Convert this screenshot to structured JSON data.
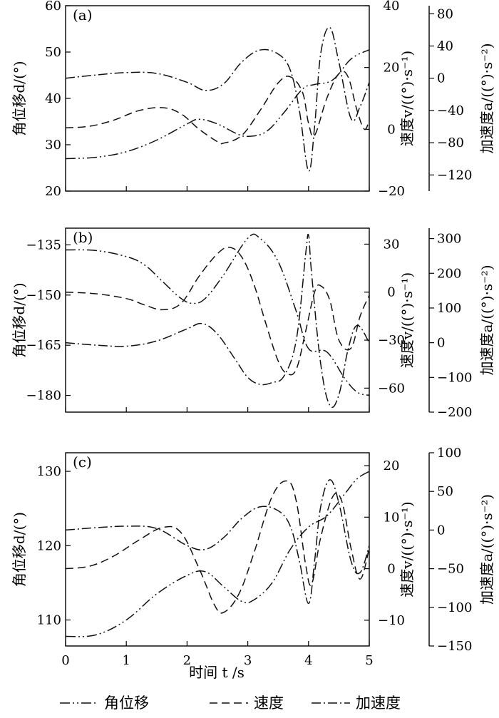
{
  "x_label": "时间 t /s",
  "legend": [
    {
      "label": "角位移",
      "dash": "dashdotdot"
    },
    {
      "label": "速度",
      "dash": "dashed"
    },
    {
      "label": "加速度",
      "dash": "dashdot"
    }
  ],
  "chart_data": [
    {
      "type": "line",
      "panel_label": "(a)",
      "xlim": [
        0,
        5
      ],
      "x_ticks": [
        0,
        1,
        2,
        3,
        4,
        5
      ],
      "axes": {
        "left": {
          "label": "角位移d/(°)",
          "lim": [
            20,
            60
          ],
          "ticks": [
            20,
            30,
            40,
            50,
            60
          ]
        },
        "right1": {
          "label": "速度v/((°)·s⁻¹)",
          "lim": [
            -20,
            40
          ],
          "ticks": [
            -20,
            0,
            20,
            40
          ]
        },
        "right2": {
          "label": "加速度a/((°)·s⁻²)",
          "lim": [
            -140,
            90
          ],
          "ticks": [
            -120,
            -80,
            -40,
            0,
            40,
            80
          ]
        }
      },
      "series": [
        {
          "name": "角位移",
          "axis": "left",
          "dash": "dashdotdot",
          "x": [
            0,
            0.5,
            1.0,
            1.5,
            2.0,
            2.2,
            2.5,
            2.8,
            3.0,
            3.3,
            3.6,
            3.9,
            4.1,
            4.4,
            4.7,
            5.0
          ],
          "y": [
            27,
            27.3,
            28.5,
            31,
            34.5,
            35.5,
            34.5,
            32.5,
            31.8,
            32.8,
            37,
            42,
            43,
            44,
            48.5,
            50.5
          ]
        },
        {
          "name": "速度",
          "axis": "right1",
          "dash": "dashed",
          "x": [
            0,
            0.4,
            0.8,
            1.2,
            1.6,
            1.9,
            2.2,
            2.5,
            2.6,
            2.9,
            3.2,
            3.5,
            3.7,
            3.9,
            4.0,
            4.1,
            4.3,
            4.5,
            4.65,
            4.8,
            4.92,
            5.0
          ],
          "y": [
            0.5,
            1,
            3,
            6,
            7,
            5,
            0,
            -4,
            -4.5,
            -2,
            6,
            15,
            17,
            12,
            2,
            -2,
            10,
            18,
            17,
            6,
            0,
            3
          ]
        },
        {
          "name": "加速度",
          "axis": "right2",
          "dash": "dashdot",
          "x": [
            0,
            0.5,
            1.0,
            1.5,
            2.0,
            2.3,
            2.6,
            2.9,
            3.2,
            3.5,
            3.7,
            3.85,
            4.0,
            4.1,
            4.2,
            4.35,
            4.5,
            4.7,
            4.85,
            5.0
          ],
          "y": [
            0,
            4,
            7,
            6,
            -5,
            -15,
            -7,
            20,
            35,
            30,
            10,
            -40,
            -115,
            -60,
            30,
            63,
            20,
            -50,
            -35,
            -5
          ]
        }
      ]
    },
    {
      "type": "line",
      "panel_label": "(b)",
      "xlim": [
        0,
        5
      ],
      "x_ticks": [
        0,
        1,
        2,
        3,
        4,
        5
      ],
      "axes": {
        "left": {
          "label": "角位移d/(°)",
          "lim": [
            -185,
            -130
          ],
          "ticks": [
            -180,
            -165,
            -150,
            -135
          ]
        },
        "right1": {
          "label": "速度v/((°)·s⁻¹)",
          "lim": [
            -75,
            40
          ],
          "ticks": [
            -60,
            -30,
            0,
            30
          ]
        },
        "right2": {
          "label": "加速度a/((°)·s⁻²)",
          "lim": [
            -200,
            330
          ],
          "ticks": [
            -200,
            -100,
            0,
            100,
            200,
            300
          ]
        }
      },
      "series": [
        {
          "name": "角位移",
          "axis": "left",
          "dash": "dashdotdot",
          "x": [
            0,
            0.5,
            1.0,
            1.3,
            1.6,
            1.9,
            2.1,
            2.3,
            2.6,
            3.0,
            3.2,
            3.5,
            3.8,
            4.0,
            4.3,
            4.6,
            4.8,
            5.0
          ],
          "y": [
            -136.5,
            -136.7,
            -138.5,
            -141,
            -146,
            -151,
            -152.5,
            -151,
            -144,
            -133,
            -133,
            -140,
            -155,
            -166,
            -167,
            -175,
            -179,
            -180
          ]
        },
        {
          "name": "速度",
          "axis": "right1",
          "dash": "dashed",
          "x": [
            0,
            0.5,
            1.0,
            1.3,
            1.6,
            1.9,
            2.2,
            2.5,
            2.7,
            2.9,
            3.1,
            3.3,
            3.5,
            3.65,
            3.8,
            3.95,
            4.1,
            4.2,
            4.35,
            4.5,
            4.7,
            4.85,
            5.0
          ],
          "y": [
            0,
            -1,
            -4,
            -8,
            -11,
            -7,
            10,
            24,
            28,
            22,
            5,
            -20,
            -43,
            -51,
            -48,
            -25,
            0,
            4,
            -5,
            -30,
            -35,
            -15,
            -2
          ]
        },
        {
          "name": "加速度",
          "axis": "right2",
          "dash": "dashdot",
          "x": [
            0,
            0.5,
            1.0,
            1.5,
            2.0,
            2.25,
            2.5,
            2.8,
            3.0,
            3.2,
            3.4,
            3.6,
            3.8,
            3.95,
            4.0,
            4.05,
            4.2,
            4.35,
            4.5,
            4.65,
            4.8,
            5.0
          ],
          "y": [
            0,
            -7,
            -10,
            5,
            40,
            55,
            25,
            -50,
            -100,
            -120,
            -115,
            -95,
            10,
            250,
            310,
            200,
            -60,
            -180,
            -150,
            -20,
            50,
            0
          ]
        }
      ]
    },
    {
      "type": "line",
      "panel_label": "(c)",
      "xlim": [
        0,
        5
      ],
      "x_ticks": [
        0,
        1,
        2,
        3,
        4,
        5
      ],
      "axes": {
        "left": {
          "label": "角位移d/(°)",
          "lim": [
            106.5,
            132.5
          ],
          "ticks": [
            110,
            120,
            130
          ]
        },
        "right1": {
          "label": "速度v/((°)·s⁻¹)",
          "lim": [
            -15,
            22.5
          ],
          "ticks": [
            -10,
            0,
            10,
            20
          ]
        },
        "right2": {
          "label": "加速度a/((°)·s⁻²)",
          "lim": [
            -150,
            100
          ],
          "ticks": [
            -150,
            -100,
            -50,
            0,
            50,
            100
          ]
        }
      },
      "series": [
        {
          "name": "角位移",
          "axis": "left",
          "dash": "dashdotdot",
          "x": [
            0,
            0.5,
            1.0,
            1.5,
            2.0,
            2.3,
            2.6,
            2.9,
            3.1,
            3.4,
            3.7,
            4.0,
            4.3,
            4.6,
            4.8,
            5.0
          ],
          "y": [
            107.8,
            108,
            110,
            113.5,
            116,
            116.5,
            114.5,
            112.5,
            112.7,
            115,
            119.5,
            122.5,
            124,
            127,
            129,
            130
          ]
        },
        {
          "name": "速度",
          "axis": "right1",
          "dash": "dashed",
          "x": [
            0,
            0.4,
            0.8,
            1.2,
            1.6,
            1.9,
            2.2,
            2.45,
            2.6,
            2.85,
            3.1,
            3.4,
            3.65,
            3.8,
            3.95,
            4.05,
            4.2,
            4.4,
            4.55,
            4.7,
            4.85,
            5.0
          ],
          "y": [
            0,
            0.5,
            2.5,
            5.5,
            8,
            7,
            0,
            -7,
            -8.5,
            -5,
            3,
            14,
            17,
            13,
            1,
            -3,
            6,
            14,
            13,
            4,
            -2,
            4
          ]
        },
        {
          "name": "加速度",
          "axis": "right2",
          "dash": "dashdot",
          "x": [
            0,
            0.5,
            1.0,
            1.5,
            2.0,
            2.3,
            2.6,
            2.9,
            3.2,
            3.5,
            3.7,
            3.85,
            4.0,
            4.1,
            4.2,
            4.35,
            4.5,
            4.7,
            4.85,
            5.0
          ],
          "y": [
            0,
            3,
            5,
            2,
            -20,
            -25,
            -10,
            15,
            30,
            25,
            5,
            -40,
            -95,
            -40,
            30,
            65,
            35,
            -40,
            -55,
            -20
          ]
        }
      ]
    }
  ]
}
